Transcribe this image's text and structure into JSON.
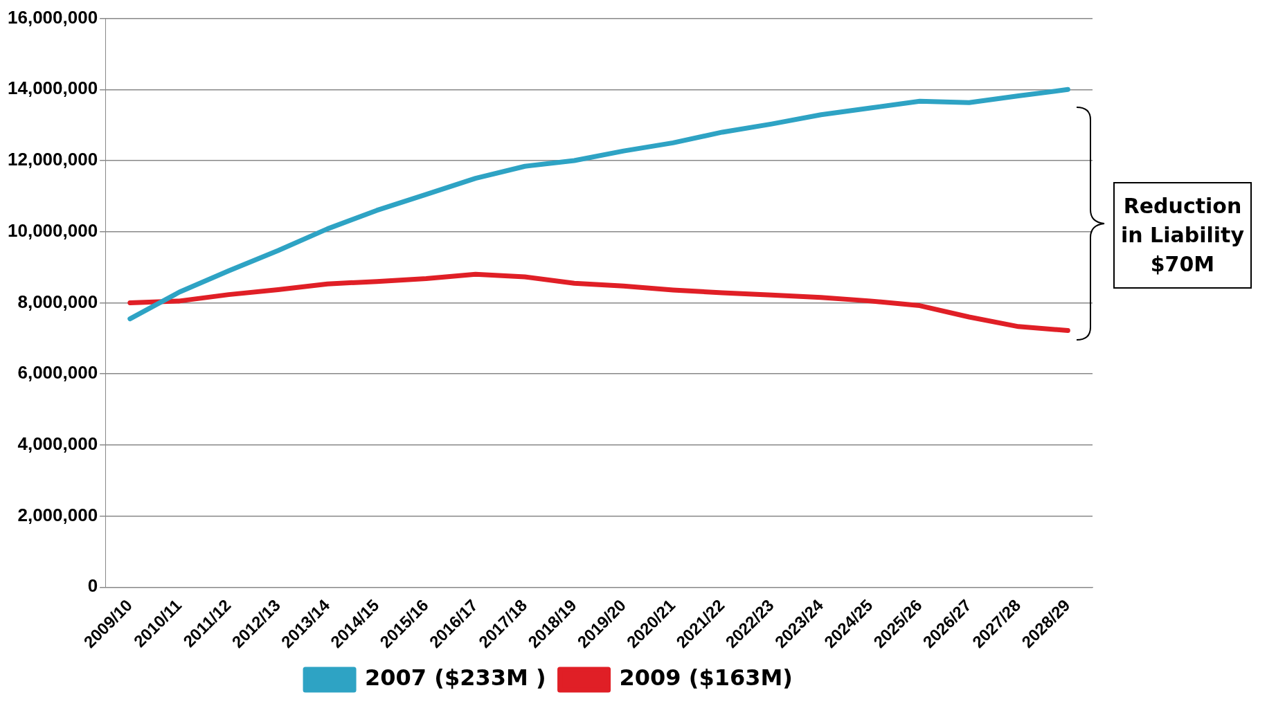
{
  "chart_data": {
    "type": "line",
    "categories": [
      "2009/10",
      "2010/11",
      "2011/12",
      "2012/13",
      "2013/14",
      "2014/15",
      "2015/16",
      "2016/17",
      "2017/18",
      "2018/19",
      "2019/20",
      "2020/21",
      "2021/22",
      "2022/23",
      "2023/24",
      "2024/25",
      "2025/26",
      "2026/27",
      "2027/28",
      "2028/29"
    ],
    "series": [
      {
        "name": "2007 ($233M )",
        "color": "#2ea3c4",
        "values": [
          7550000,
          8300000,
          8900000,
          9470000,
          10080000,
          10600000,
          11050000,
          11500000,
          11840000,
          12000000,
          12270000,
          12500000,
          12800000,
          13030000,
          13290000,
          13480000,
          13670000,
          13630000,
          13820000,
          14000000
        ]
      },
      {
        "name": "2009 ($163M)",
        "color": "#e01f26",
        "values": [
          8000000,
          8050000,
          8230000,
          8370000,
          8530000,
          8600000,
          8680000,
          8800000,
          8730000,
          8550000,
          8470000,
          8360000,
          8280000,
          8220000,
          8150000,
          8050000,
          7920000,
          7600000,
          7330000,
          7220000
        ]
      }
    ],
    "ylim": [
      0,
      16000000
    ],
    "yticks": [
      0,
      {
        "value": 2000000,
        "label": "2,000,000"
      },
      {
        "value": 4000000,
        "label": "4,000,000"
      },
      {
        "value": 6000000,
        "label": "6,000,000"
      },
      {
        "value": 8000000,
        "label": "8,000,000"
      },
      {
        "value": 10000000,
        "label": "10,000,000"
      },
      {
        "value": 12000000,
        "label": "12,000,000"
      },
      {
        "value": 14000000,
        "label": "14,000,000"
      },
      {
        "value": 16000000,
        "label": "16,000,000"
      }
    ],
    "grid": "y",
    "legend": "bottom",
    "marker": "none",
    "line_style": "solid",
    "annotations": [
      "Reduction in Liability $70M"
    ]
  }
}
